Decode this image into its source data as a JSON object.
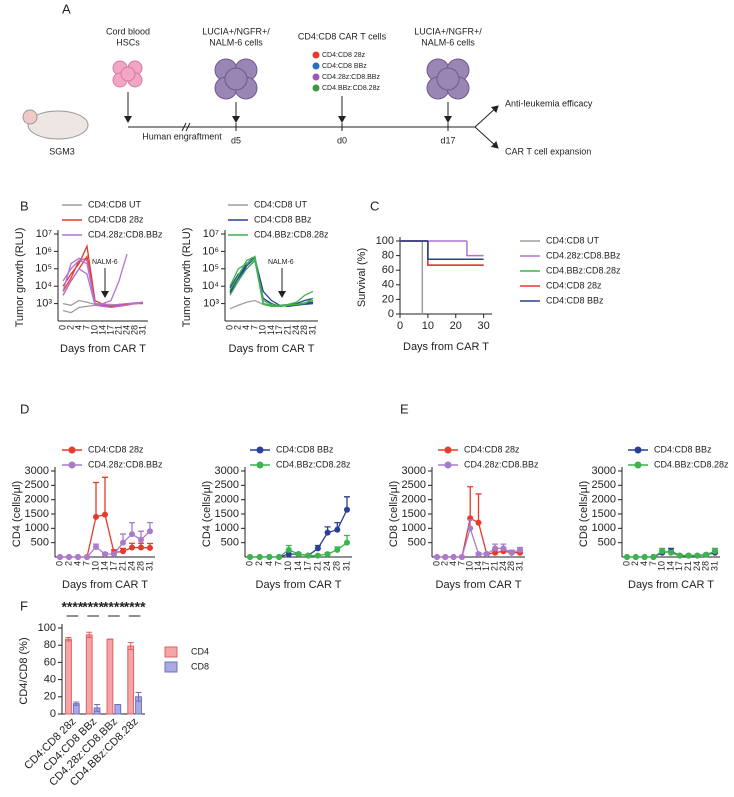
{
  "panels": [
    "A",
    "B",
    "C",
    "D",
    "E",
    "F"
  ],
  "schematic": {
    "hsc": [
      "Cord blood",
      "HSCs"
    ],
    "nalm6_left": [
      "LUCIA+/NGFR+/",
      "NALM-6 cells"
    ],
    "car_t_title": "CD4:CD8  CAR T cells",
    "car_t_groups": [
      "CD4:CD8 28z",
      "CD4:CD8 BBz",
      "CD4.28z:CD8.BBz",
      "CD4.BBz:CD8.28z"
    ],
    "nalm6_right": [
      "LUCIA+/NGFR+/",
      "NALM-6 cells"
    ],
    "outcomes": [
      "Anti-leukemia efficacy",
      "CAR T cell expansion"
    ],
    "mouse": "SGM3",
    "engraftment": "Human engraftment",
    "timepoints": [
      "d5",
      "d0",
      "d17"
    ]
  },
  "chart_data": [
    {
      "type": "line",
      "log": true,
      "y_label": "Tumor growth (RLU)",
      "x_label": "Days from CAR T",
      "annotation": "NALM-6",
      "categories": [
        "0",
        "2",
        "4",
        "7",
        "10",
        "14",
        "17",
        "21",
        "24",
        "28",
        "31"
      ],
      "ylim": [
        100,
        10000000
      ],
      "yticks": [
        {
          "value": 1000,
          "label": "10³"
        },
        {
          "value": 10000,
          "label": "10⁴"
        },
        {
          "value": 100000,
          "label": "10⁵"
        },
        {
          "value": 1000000,
          "label": "10⁶"
        },
        {
          "value": 10000000,
          "label": "10⁷"
        }
      ],
      "series": [
        {
          "name": "CD4:CD8 UT",
          "color": "#9e9e9e",
          "mice": [
            [
              1000,
              800,
              1500,
              1200,
              900,
              1000,
              800,
              900,
              1000,
              1100,
              1200
            ],
            [
              400,
              300,
              600,
              700,
              800,
              900,
              900,
              800,
              900,
              1000,
              1100
            ]
          ]
        },
        {
          "name": "CD4:CD8 28z",
          "color": "#e8392b",
          "mice": [
            [
              3000,
              20000,
              100000,
              500000,
              1000,
              800,
              700,
              800,
              900,
              1000,
              1200
            ],
            [
              10000,
              50000,
              200000,
              2000000,
              1500,
              900,
              700,
              800,
              900,
              1000,
              1100
            ],
            [
              5000,
              30000,
              300000,
              400000,
              1000,
              800,
              700,
              800,
              900,
              1000,
              1000
            ]
          ]
        },
        {
          "name": "CD4.28z:CD8.BBz",
          "color": "#b073d3",
          "mice": [
            [
              20000,
              100000,
              300000,
              200000,
              1000,
              900,
              800,
              900,
              1000,
              1100,
              1200
            ],
            [
              5000,
              200000,
              400000,
              300000,
              900,
              1000,
              1500,
              20000,
              700000,
              null,
              null
            ],
            [
              3000,
              20000,
              100000,
              50000,
              800,
              700,
              600,
              700,
              800,
              1000,
              1100
            ]
          ]
        }
      ]
    },
    {
      "type": "line",
      "log": true,
      "y_label": "Tumor growth (RLU)",
      "x_label": "Days from CAR T",
      "annotation": "NALM-6",
      "categories": [
        "0",
        "2",
        "4",
        "7",
        "10",
        "14",
        "17",
        "21",
        "24",
        "28",
        "31"
      ],
      "ylim": [
        100,
        10000000
      ],
      "yticks": [
        {
          "value": 1000,
          "label": "10³"
        },
        {
          "value": 10000,
          "label": "10⁴"
        },
        {
          "value": 100000,
          "label": "10⁵"
        },
        {
          "value": 1000000,
          "label": "10⁶"
        },
        {
          "value": 10000000,
          "label": "10⁷"
        }
      ],
      "series": [
        {
          "name": "CD4:CD8 UT",
          "color": "#9e9e9e",
          "mice": [
            [
              500,
              800,
              1200,
              1500,
              900,
              800,
              700,
              800,
              900,
              1100,
              1200
            ]
          ]
        },
        {
          "name": "CD4:CD8 BBz",
          "color": "#2a3f96",
          "mice": [
            [
              5000,
              30000,
              200000,
              500000,
              1000,
              800,
              700,
              800,
              1000,
              1500,
              2000
            ],
            [
              8000,
              50000,
              100000,
              300000,
              2000,
              1000,
              700,
              800,
              900,
              1000,
              1200
            ],
            [
              4000,
              20000,
              150000,
              400000,
              5000,
              1500,
              800,
              700,
              800,
              900,
              1000
            ]
          ]
        },
        {
          "name": "CD4.BBz:CD8.28z",
          "color": "#3cb44b",
          "mice": [
            [
              6000,
              40000,
              300000,
              500000,
              1000,
              800,
              800,
              900,
              1200,
              3000,
              5000
            ],
            [
              10000,
              100000,
              200000,
              400000,
              1500,
              900,
              700,
              800,
              900,
              1000,
              2000
            ],
            [
              3000,
              20000,
              100000,
              300000,
              900,
              700,
              700,
              800,
              900,
              1100,
              1500
            ]
          ]
        }
      ]
    },
    {
      "type": "step",
      "y_label": "Survival (%)",
      "x_label": "Days from CAR T",
      "xlim": [
        0,
        33
      ],
      "xticks": [
        0,
        10,
        20,
        30
      ],
      "ylim": [
        0,
        100
      ],
      "yticks": [
        0,
        20,
        40,
        60,
        80,
        100
      ],
      "series": [
        {
          "name": "CD4:CD8 UT",
          "color": "#9e9e9e",
          "x": [
            0,
            8
          ],
          "values": [
            100,
            0
          ]
        },
        {
          "name": "CD4.28z:CD8.BBz",
          "color": "#b073d3",
          "x": [
            0,
            24,
            30
          ],
          "values": [
            100,
            80,
            80
          ]
        },
        {
          "name": "CD4.BBz:CD8.28z",
          "color": "#3cb44b",
          "x": [
            0,
            10,
            30
          ],
          "values": [
            100,
            67,
            67
          ]
        },
        {
          "name": "CD4:CD8 28z",
          "color": "#e8392b",
          "x": [
            0,
            10,
            30
          ],
          "values": [
            100,
            67,
            67
          ]
        },
        {
          "name": "CD4:CD8 BBz",
          "color": "#2a3f96",
          "x": [
            0,
            10,
            30
          ],
          "values": [
            100,
            75,
            75
          ]
        }
      ]
    },
    {
      "type": "line",
      "y_label": "CD4 (cells/µl)",
      "x_label": "Days from CAR T",
      "categories": [
        "0",
        "2",
        "4",
        "7",
        "10",
        "14",
        "17",
        "21",
        "24",
        "28",
        "31"
      ],
      "ylim": [
        0,
        3000
      ],
      "yticks": [
        500,
        1000,
        1500,
        2000,
        2500,
        3000
      ],
      "series": [
        {
          "name": "CD4:CD8 28z",
          "color": "#e8392b",
          "values": [
            0,
            0,
            0,
            0,
            1400,
            1480,
            150,
            200,
            330,
            330,
            320
          ],
          "errors": [
            0,
            0,
            0,
            0,
            1200,
            1300,
            100,
            100,
            150,
            150,
            150
          ]
        },
        {
          "name": "CD4.28z:CD8.BBz",
          "color": "#a97bcd",
          "values": [
            0,
            0,
            0,
            0,
            350,
            100,
            100,
            500,
            800,
            600,
            900
          ],
          "errors": [
            0,
            0,
            0,
            0,
            100,
            50,
            50,
            300,
            400,
            300,
            300
          ]
        }
      ]
    },
    {
      "type": "line",
      "y_label": "CD4 (cells/µl)",
      "x_label": "Days from CAR T",
      "categories": [
        "0",
        "2",
        "4",
        "7",
        "10",
        "14",
        "17",
        "21",
        "24",
        "28",
        "31"
      ],
      "ylim": [
        0,
        3000
      ],
      "yticks": [
        500,
        1000,
        1500,
        2000,
        2500,
        3000
      ],
      "series": [
        {
          "name": "CD4:CD8 BBz",
          "color": "#2a3f96",
          "values": [
            0,
            0,
            0,
            0,
            100,
            100,
            50,
            300,
            850,
            950,
            1650
          ],
          "errors": [
            0,
            0,
            0,
            0,
            100,
            50,
            30,
            100,
            200,
            250,
            450
          ]
        },
        {
          "name": "CD4.BBz:CD8.28z",
          "color": "#3cb44b",
          "values": [
            0,
            0,
            0,
            0,
            250,
            100,
            50,
            50,
            100,
            250,
            500
          ],
          "errors": [
            0,
            0,
            0,
            0,
            150,
            50,
            30,
            30,
            50,
            100,
            250
          ]
        }
      ]
    },
    {
      "type": "line",
      "y_label": "CD8 (cells/µl)",
      "x_label": "Days from CAR T",
      "categories": [
        "0",
        "2",
        "4",
        "7",
        "10",
        "14",
        "17",
        "21",
        "24",
        "28",
        "31"
      ],
      "ylim": [
        0,
        3000
      ],
      "yticks": [
        500,
        1000,
        1500,
        2000,
        2500,
        3000
      ],
      "series": [
        {
          "name": "CD4:CD8 28z",
          "color": "#e8392b",
          "values": [
            0,
            0,
            0,
            0,
            1350,
            1200,
            100,
            150,
            200,
            150,
            150
          ],
          "errors": [
            0,
            0,
            0,
            0,
            1100,
            1000,
            50,
            100,
            100,
            80,
            80
          ]
        },
        {
          "name": "CD4.28z:CD8.BBz",
          "color": "#a97bcd",
          "values": [
            0,
            0,
            0,
            0,
            1000,
            100,
            100,
            300,
            300,
            150,
            250
          ],
          "errors": [
            0,
            0,
            0,
            0,
            300,
            50,
            50,
            150,
            150,
            80,
            80
          ]
        }
      ]
    },
    {
      "type": "line",
      "y_label": "CD8 (cells/µl)",
      "x_label": "Days from CAR T",
      "categories": [
        "0",
        "2",
        "4",
        "7",
        "10",
        "14",
        "17",
        "21",
        "24",
        "28",
        "31"
      ],
      "ylim": [
        0,
        3000
      ],
      "yticks": [
        500,
        1000,
        1500,
        2000,
        2500,
        3000
      ],
      "series": [
        {
          "name": "CD4:CD8 BBz",
          "color": "#2a3f96",
          "values": [
            0,
            0,
            0,
            0,
            150,
            200,
            50,
            50,
            50,
            80,
            150
          ],
          "errors": [
            0,
            0,
            0,
            0,
            80,
            100,
            30,
            30,
            30,
            40,
            80
          ]
        },
        {
          "name": "CD4.BBz:CD8.28z",
          "color": "#3cb44b",
          "values": [
            0,
            0,
            0,
            0,
            200,
            150,
            50,
            50,
            50,
            80,
            200
          ],
          "errors": [
            0,
            0,
            0,
            0,
            100,
            80,
            30,
            30,
            30,
            40,
            100
          ]
        }
      ]
    },
    {
      "type": "bar",
      "y_label": "CD4/CD8 (%)",
      "categories": [
        "CD4:CD8 28z",
        "CD4:CD8 BBz",
        "CD4.28z:CD8.BBz",
        "CD4.BBz:CD8.28z"
      ],
      "annotations": [
        "****",
        "****",
        "****",
        "****"
      ],
      "ylim": [
        0,
        100
      ],
      "yticks": [
        0,
        20,
        40,
        60,
        80,
        100
      ],
      "series": [
        {
          "name": "CD4",
          "color": "#f4a6a6",
          "edge": "#e06060",
          "values": [
            87,
            92,
            87,
            79
          ],
          "errors": [
            2,
            3,
            0,
            4
          ]
        },
        {
          "name": "CD8",
          "color": "#aaaae2",
          "edge": "#6f6fc0",
          "values": [
            12,
            7,
            11,
            20
          ],
          "errors": [
            2,
            4,
            0,
            5
          ]
        }
      ]
    }
  ]
}
